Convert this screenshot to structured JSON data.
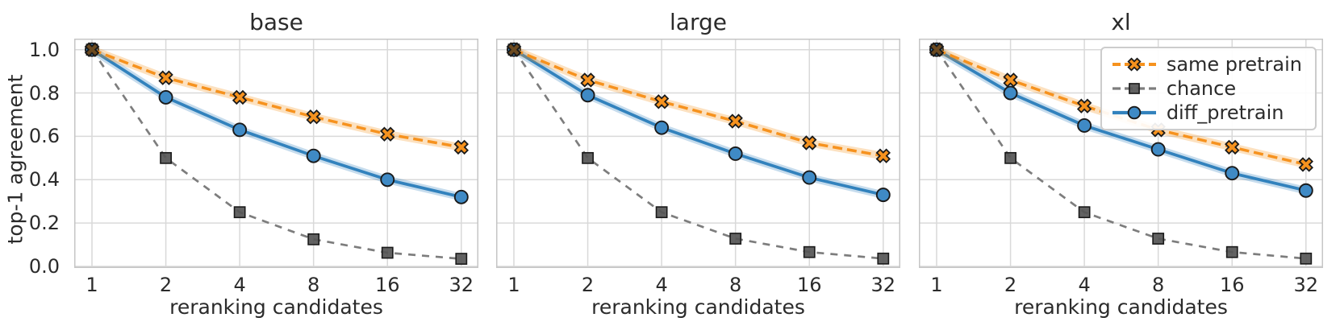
{
  "figure": {
    "ylabel": "top-1 agreement",
    "background": "#ffffff",
    "text_color": "#2b2b2b",
    "grid_color": "#d9d9d9",
    "spine_color": "#c6c6c6",
    "overlap_marker_color": "#6b4a20",
    "ytick_labels": [
      "1.0",
      "0.8",
      "0.6",
      "0.4",
      "0.2",
      "0.0"
    ]
  },
  "chart_data": [
    {
      "type": "line",
      "title": "base",
      "xlabel": "reranking candidates",
      "xscale": "log2",
      "x": [
        1,
        2,
        4,
        8,
        16,
        32
      ],
      "xtick_labels": [
        "1",
        "2",
        "4",
        "8",
        "16",
        "32"
      ],
      "yticks": [
        0.0,
        0.2,
        0.4,
        0.6,
        0.8,
        1.0
      ],
      "ylim": [
        0.0,
        1.05
      ],
      "grid": true,
      "series": [
        {
          "name": "same pretrain",
          "values": [
            1.0,
            0.87,
            0.78,
            0.69,
            0.61,
            0.55
          ]
        },
        {
          "name": "chance",
          "values": [
            1.0,
            0.5,
            0.25,
            0.125,
            0.063,
            0.035
          ]
        },
        {
          "name": "diff_pretrain",
          "values": [
            1.0,
            0.78,
            0.63,
            0.51,
            0.4,
            0.32
          ]
        }
      ]
    },
    {
      "type": "line",
      "title": "large",
      "xlabel": "reranking candidates",
      "xscale": "log2",
      "x": [
        1,
        2,
        4,
        8,
        16,
        32
      ],
      "xtick_labels": [
        "1",
        "2",
        "4",
        "8",
        "16",
        "32"
      ],
      "yticks": [
        0.0,
        0.2,
        0.4,
        0.6,
        0.8,
        1.0
      ],
      "ylim": [
        0.0,
        1.05
      ],
      "grid": true,
      "series": [
        {
          "name": "same pretrain",
          "values": [
            1.0,
            0.86,
            0.76,
            0.67,
            0.57,
            0.51
          ]
        },
        {
          "name": "chance",
          "values": [
            1.0,
            0.5,
            0.25,
            0.128,
            0.066,
            0.036
          ]
        },
        {
          "name": "diff_pretrain",
          "values": [
            1.0,
            0.79,
            0.64,
            0.52,
            0.41,
            0.33
          ]
        }
      ]
    },
    {
      "type": "line",
      "title": "xl",
      "xlabel": "reranking candidates",
      "xscale": "log2",
      "x": [
        1,
        2,
        4,
        8,
        16,
        32
      ],
      "xtick_labels": [
        "1",
        "2",
        "4",
        "8",
        "16",
        "32"
      ],
      "yticks": [
        0.0,
        0.2,
        0.4,
        0.6,
        0.8,
        1.0
      ],
      "ylim": [
        0.0,
        1.05
      ],
      "grid": true,
      "series": [
        {
          "name": "same pretrain",
          "values": [
            1.0,
            0.86,
            0.74,
            0.63,
            0.55,
            0.47
          ]
        },
        {
          "name": "chance",
          "values": [
            1.0,
            0.5,
            0.25,
            0.128,
            0.066,
            0.036
          ]
        },
        {
          "name": "diff_pretrain",
          "values": [
            1.0,
            0.8,
            0.65,
            0.54,
            0.43,
            0.35
          ]
        }
      ]
    }
  ],
  "legend": {
    "position": "upper right",
    "items": [
      {
        "label": "same pretrain",
        "color": "#f6921e",
        "marker": "x",
        "marker_fill": "#f6921e",
        "linestyle": "dashed",
        "dash": "12 6",
        "line_width": 3.5,
        "halo": true
      },
      {
        "label": "chance",
        "color": "#7d7d7d",
        "marker": "square",
        "marker_fill": "#555555",
        "linestyle": "dashed",
        "dash": "9 8",
        "line_width": 2.7,
        "halo": false
      },
      {
        "label": "diff_pretrain",
        "color": "#3282bd",
        "marker": "circle",
        "marker_fill": "#3f8ac5",
        "linestyle": "solid",
        "dash": "",
        "line_width": 3.7,
        "halo": true
      }
    ]
  }
}
